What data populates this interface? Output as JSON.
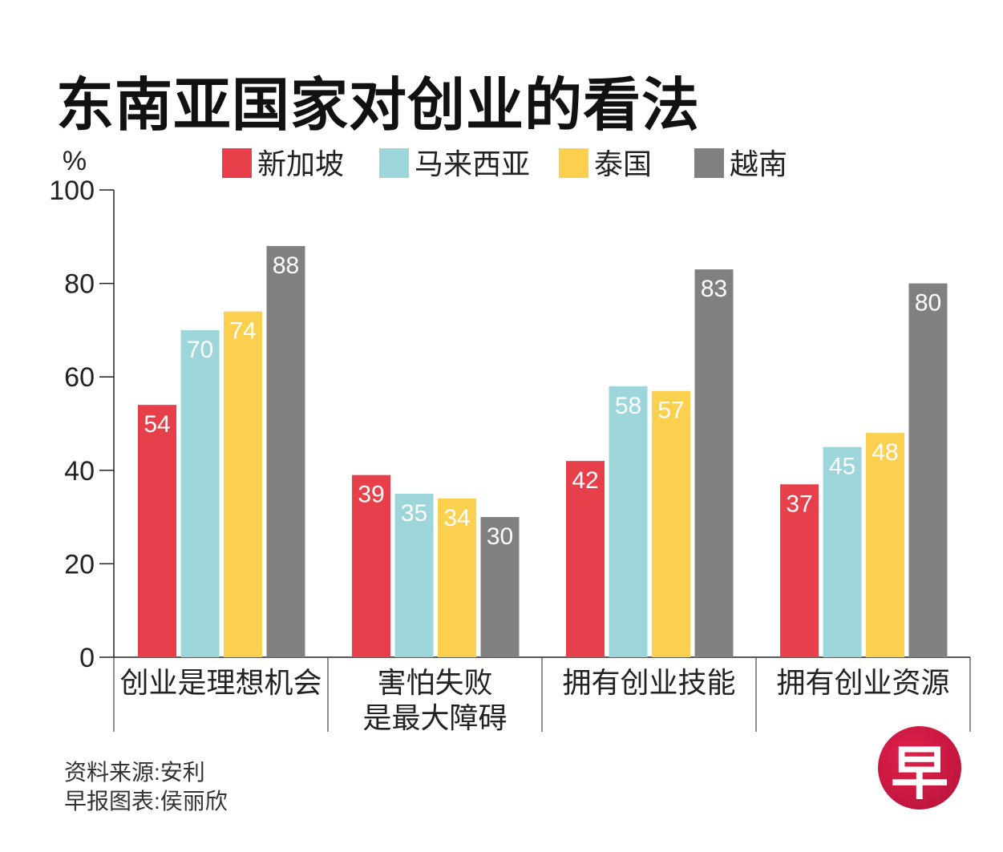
{
  "chart_data": {
    "type": "bar",
    "title": "东南亚国家对创业的看法",
    "ylabel": "%",
    "ylim": [
      0,
      100
    ],
    "yticks": [
      0,
      20,
      40,
      60,
      80,
      100
    ],
    "categories": [
      [
        "创业是理想机会"
      ],
      [
        "害怕失败",
        "是最大障碍"
      ],
      [
        "拥有创业技能"
      ],
      [
        "拥有创业资源"
      ]
    ],
    "series": [
      {
        "name": "新加坡",
        "color": "#e8404a",
        "values": [
          54,
          39,
          42,
          37
        ]
      },
      {
        "name": "马来西亚",
        "color": "#9dd6da",
        "values": [
          70,
          35,
          58,
          45
        ]
      },
      {
        "name": "泰国",
        "color": "#fcd04f",
        "values": [
          74,
          34,
          57,
          48
        ]
      },
      {
        "name": "越南",
        "color": "#808080",
        "values": [
          88,
          30,
          83,
          80
        ]
      }
    ],
    "legend_position": "top",
    "grid": false
  },
  "footer": {
    "source": "资料来源:安利",
    "credit": "早报图表:侯丽欣"
  },
  "logo": {
    "text": "早",
    "color": "#c8173f"
  }
}
